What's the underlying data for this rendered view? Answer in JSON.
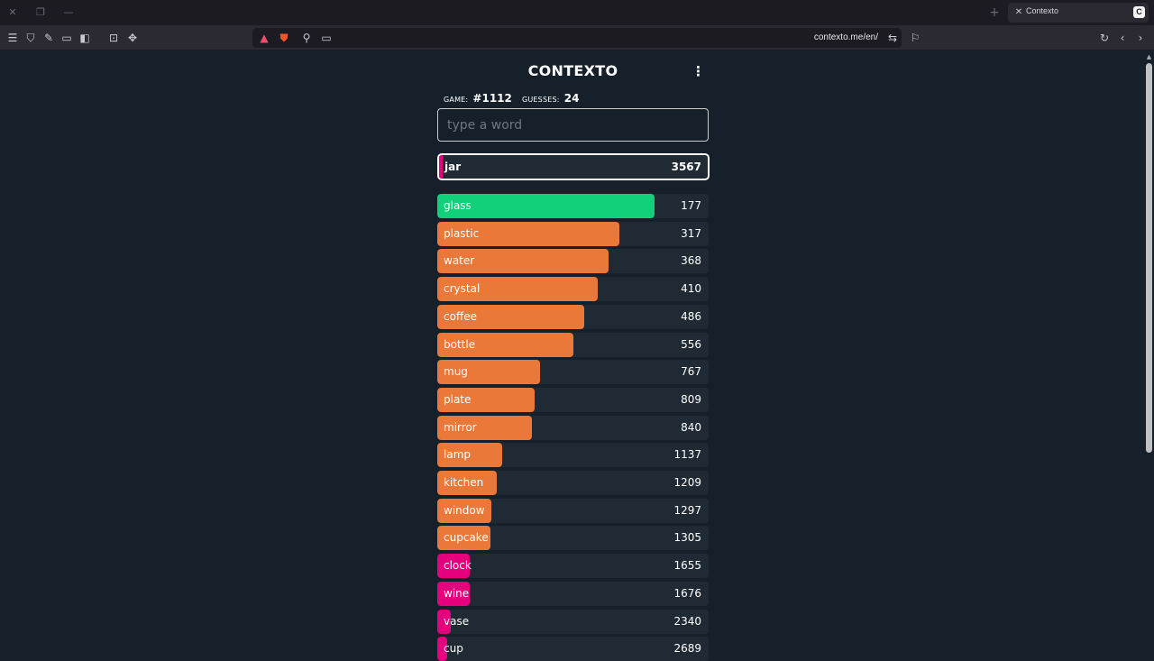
{
  "browser": {
    "tab_title": "Contexto",
    "tab_favicon": "C",
    "url": "contexto.me/en/",
    "icons": [
      "close-icon",
      "restore-icon",
      "minimize-icon",
      "new-tab-icon",
      "menu-icon",
      "shield-icon",
      "pin-icon",
      "tabs-icon",
      "sidebar-icon",
      "screenshot-icon",
      "extension-icon",
      "brave-rewards-icon",
      "brave-shields-icon",
      "translate-icon",
      "pip-icon",
      "site-settings-icon",
      "bookmark-icon",
      "reload-icon",
      "back-icon",
      "forward-icon"
    ]
  },
  "game": {
    "title": "CONTEXTO",
    "game_label": "GAME:",
    "game_number": "#1112",
    "guesses_label": "GUESSES:",
    "guesses_count": "24",
    "input_placeholder": "type a word",
    "last_guess": {
      "word": "jar",
      "distance": "3567",
      "fill": 0.01,
      "color": "#e5007e"
    },
    "guesses": [
      {
        "word": "glass",
        "distance": "177",
        "fill": 0.8,
        "color": "#12d07a"
      },
      {
        "word": "plastic",
        "distance": "317",
        "fill": 0.67,
        "color": "#ea7838"
      },
      {
        "word": "water",
        "distance": "368",
        "fill": 0.63,
        "color": "#ea7838"
      },
      {
        "word": "crystal",
        "distance": "410",
        "fill": 0.59,
        "color": "#ea7838"
      },
      {
        "word": "coffee",
        "distance": "486",
        "fill": 0.54,
        "color": "#ea7838"
      },
      {
        "word": "bottle",
        "distance": "556",
        "fill": 0.5,
        "color": "#ea7838"
      },
      {
        "word": "mug",
        "distance": "767",
        "fill": 0.38,
        "color": "#ea7838"
      },
      {
        "word": "plate",
        "distance": "809",
        "fill": 0.36,
        "color": "#ea7838"
      },
      {
        "word": "mirror",
        "distance": "840",
        "fill": 0.35,
        "color": "#ea7838"
      },
      {
        "word": "lamp",
        "distance": "1137",
        "fill": 0.24,
        "color": "#ea7838"
      },
      {
        "word": "kitchen",
        "distance": "1209",
        "fill": 0.22,
        "color": "#ea7838"
      },
      {
        "word": "window",
        "distance": "1297",
        "fill": 0.2,
        "color": "#ea7838"
      },
      {
        "word": "cupcake",
        "distance": "1305",
        "fill": 0.195,
        "color": "#ea7838"
      },
      {
        "word": "clock",
        "distance": "1655",
        "fill": 0.12,
        "color": "#e5007e"
      },
      {
        "word": "wine",
        "distance": "1676",
        "fill": 0.12,
        "color": "#e5007e"
      },
      {
        "word": "vase",
        "distance": "2340",
        "fill": 0.05,
        "color": "#e5007e"
      },
      {
        "word": "cup",
        "distance": "2689",
        "fill": 0.035,
        "color": "#e5007e"
      }
    ]
  }
}
